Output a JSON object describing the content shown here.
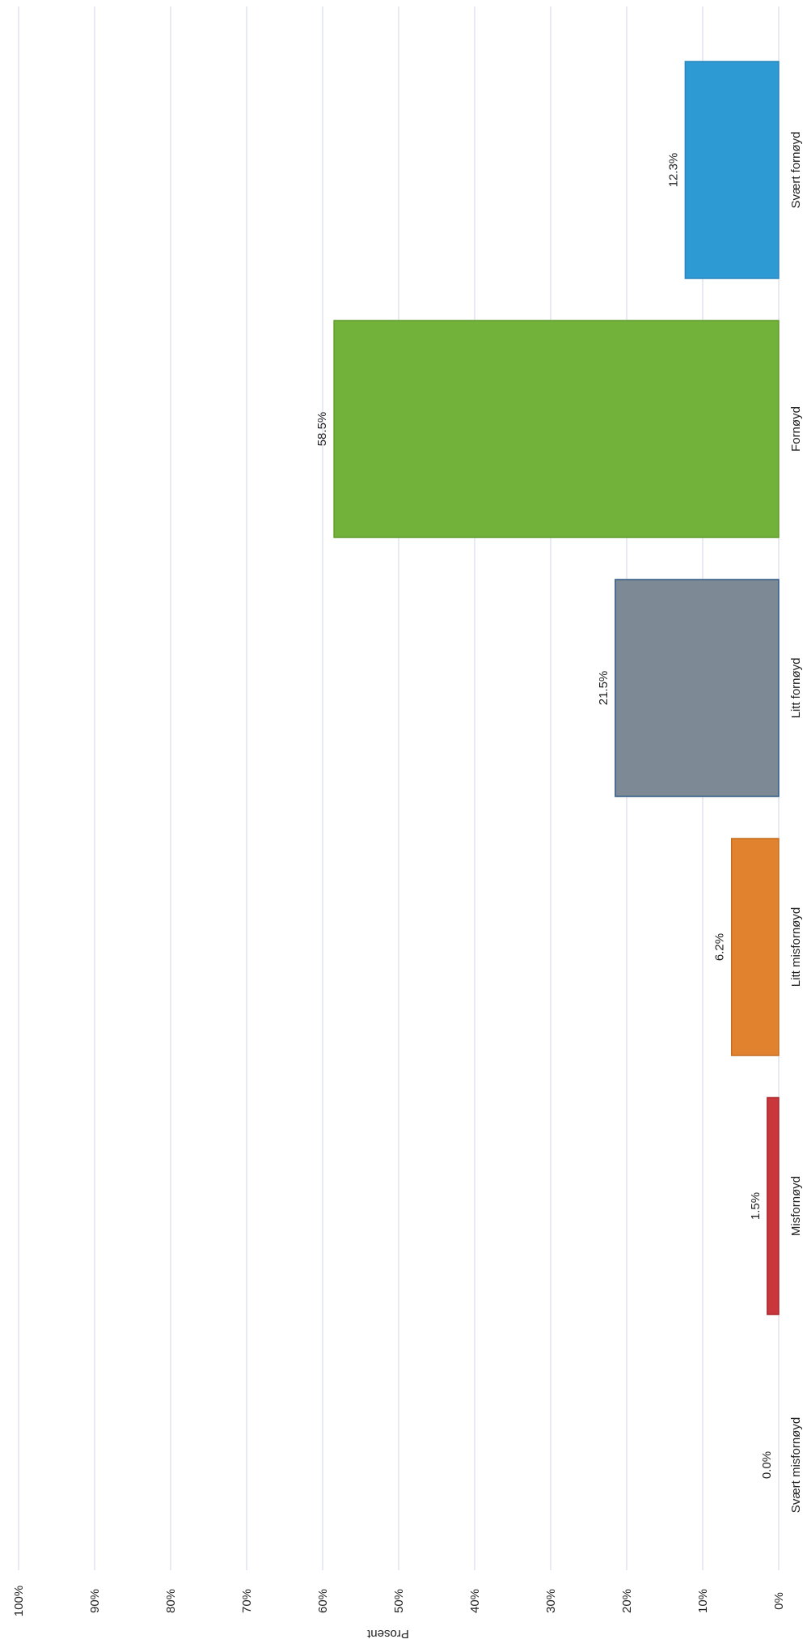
{
  "chart_data": {
    "type": "bar",
    "orientation": "rotated-90-clockwise",
    "categories": [
      "Svært fornøyd",
      "Fornøyd",
      "Litt fornøyd",
      "Litt misfornøyd",
      "Misfornøyd",
      "Svært misfornøyd"
    ],
    "values": [
      12.3,
      58.5,
      21.5,
      6.2,
      1.5,
      0.0
    ],
    "data_labels": [
      "12.3%",
      "58.5%",
      "21.5%",
      "6.2%",
      "1.5%",
      "0.0%"
    ],
    "colors": [
      "#2e9ad4",
      "#72b23a",
      "#7d8a96",
      "#e0822e",
      "#c9363b",
      "#cccccc"
    ],
    "border_colors": [
      "#2b85bd",
      "#5e9a2a",
      "#2f5a86",
      "#c46d1f",
      "#a8272c",
      "#aaaaaa"
    ],
    "ylabel": "Prosent",
    "yticks": [
      "0%",
      "10%",
      "20%",
      "30%",
      "40%",
      "50%",
      "60%",
      "70%",
      "80%",
      "90%",
      "100%"
    ],
    "ylim": [
      0,
      100
    ],
    "grid": true,
    "grid_color": "#cfd4e6",
    "legend": "none"
  }
}
